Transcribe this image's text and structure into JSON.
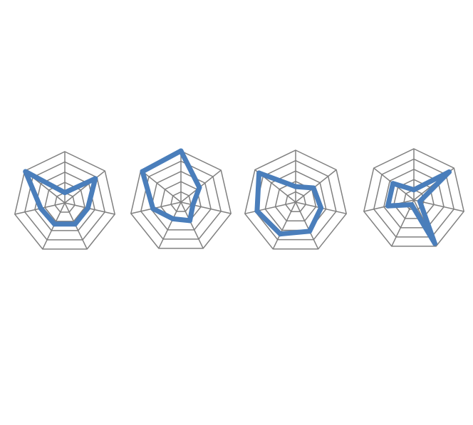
{
  "chart_data": [
    {
      "type": "radar",
      "axes_count": 7,
      "rlim": [
        0,
        5
      ],
      "grid": true,
      "series": [
        {
          "values": [
            1.0,
            3.8,
            2.3,
            2.3,
            2.3,
            2.4,
            4.9
          ],
          "color": "#4a7ebb"
        }
      ]
    },
    {
      "type": "radar",
      "axes_count": 7,
      "rlim": [
        0,
        5
      ],
      "grid": true,
      "series": [
        {
          "values": [
            5.0,
            2.3,
            1.2,
            2.0,
            1.8,
            2.8,
            4.8
          ],
          "color": "#4a7ebb"
        }
      ]
    },
    {
      "type": "radar",
      "axes_count": 7,
      "rlim": [
        0,
        5
      ],
      "grid": true,
      "series": [
        {
          "values": [
            1.5,
            2.2,
            2.5,
            3.1,
            3.4,
            3.8,
            4.5
          ],
          "color": "#4a7ebb"
        }
      ]
    },
    {
      "type": "radar",
      "axes_count": 7,
      "rlim": [
        0,
        5
      ],
      "grid": true,
      "series": [
        {
          "values": [
            1.0,
            4.4,
            0.6,
            4.7,
            0.5,
            2.6,
            2.6
          ],
          "color": "#4a7ebb"
        }
      ]
    }
  ]
}
